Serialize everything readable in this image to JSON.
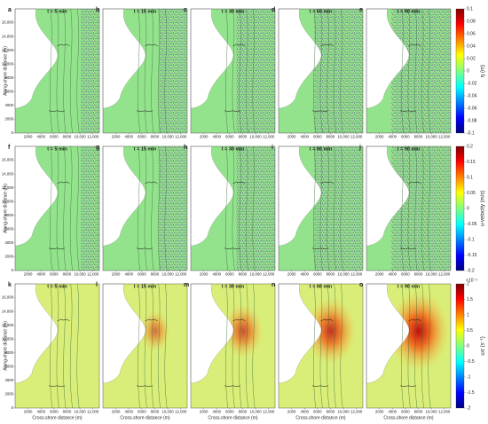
{
  "chart_data": [
    {
      "type": "heatmap",
      "colorbar_label": "η (m)",
      "clim": [
        -0.1,
        0.1
      ],
      "cticks": [
        0.1,
        0.08,
        0.06,
        0.04,
        0.02,
        0,
        -0.02,
        -0.04,
        -0.06,
        -0.08,
        -0.1
      ],
      "background_color": "#93e38c",
      "panels": [
        {
          "label": "a",
          "title": "t = 5 min"
        },
        {
          "label": "b",
          "title": "t = 15 min"
        },
        {
          "label": "c",
          "title": "t = 30 min"
        },
        {
          "label": "d",
          "title": "t = 60 min"
        },
        {
          "label": "e",
          "title": "t = 90 min"
        }
      ]
    },
    {
      "type": "heatmap",
      "colorbar_label": "u-velocity (m/s)",
      "clim": [
        -0.2,
        0.2
      ],
      "cticks": [
        0.2,
        0.15,
        0.1,
        0.05,
        0,
        -0.05,
        -0.1,
        -0.15,
        -0.2
      ],
      "background_color": "#93e38c",
      "panels": [
        {
          "label": "f",
          "title": "t = 5 min"
        },
        {
          "label": "g",
          "title": "t = 15 min"
        },
        {
          "label": "h",
          "title": "t = 30 min"
        },
        {
          "label": "i",
          "title": "t = 60 min"
        },
        {
          "label": "j",
          "title": "t = 90 min"
        }
      ]
    },
    {
      "type": "heatmap",
      "colorbar_label": "ωz (s⁻¹)",
      "multiplier": "×10⁻³",
      "clim": [
        -2,
        2
      ],
      "cticks": [
        2,
        1.5,
        1,
        0.5,
        0,
        -0.5,
        -1,
        -1.5,
        -2
      ],
      "background_color": "#d9ee78",
      "panels": [
        {
          "label": "k",
          "title": "t = 5 min"
        },
        {
          "label": "l",
          "title": "t = 15 min"
        },
        {
          "label": "m",
          "title": "t = 30 min"
        },
        {
          "label": "n",
          "title": "t = 60 min"
        },
        {
          "label": "o",
          "title": "t = 90 min"
        }
      ]
    }
  ],
  "axes": {
    "ylabel": "Along-shore distance (m)",
    "xlabel": "Cross-shore distance (m)",
    "xlim": [
      0,
      13000
    ],
    "ylim": [
      0,
      18000
    ],
    "xticks": [
      2000,
      4000,
      6000,
      8000,
      {
        "value": 10000,
        "label": "10,000"
      },
      {
        "value": 12000,
        "label": "12,000"
      }
    ],
    "yticks": [
      0,
      2000,
      4000,
      6000,
      8000,
      {
        "value": 10000,
        "label": "10,000"
      },
      {
        "value": 12000,
        "label": "12,000"
      },
      {
        "value": 14000,
        "label": "14,000"
      },
      {
        "value": 16000,
        "label": "16,000"
      }
    ]
  }
}
